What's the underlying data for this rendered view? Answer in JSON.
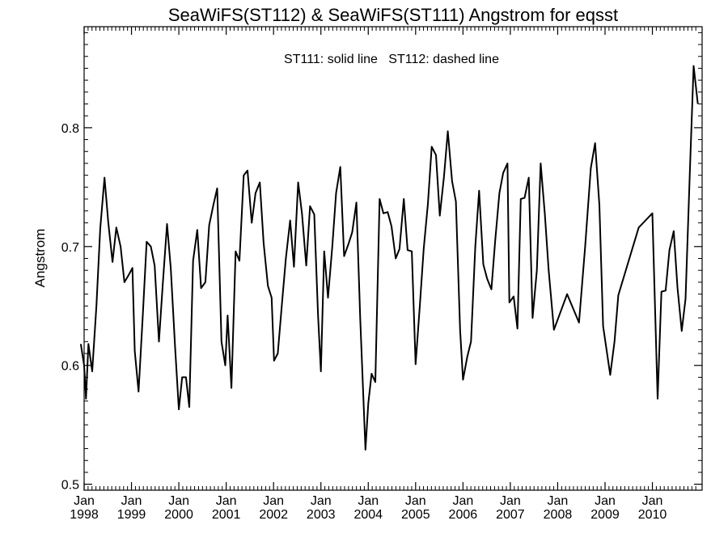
{
  "chart_data": {
    "type": "line",
    "title": "SeaWiFS(ST112) & SeaWiFS(ST111)  Angstrom for eqsst",
    "annotation": "ST111: solid line   ST112: dashed line",
    "xlabel": "",
    "ylabel": "Angstrom",
    "ylim": [
      0.495,
      0.885
    ],
    "xlim": [
      1998.0,
      2011.05
    ],
    "y_ticks": [
      0.5,
      0.6,
      0.7,
      0.8
    ],
    "y_tick_labels": [
      "0.5",
      "0.6",
      "0.7",
      "0.8"
    ],
    "x_ticks": [
      {
        "year": 1998,
        "month_label": "Jan",
        "year_label": "1998"
      },
      {
        "year": 1999,
        "month_label": "Jan",
        "year_label": "1999"
      },
      {
        "year": 2000,
        "month_label": "Jan",
        "year_label": "2000"
      },
      {
        "year": 2001,
        "month_label": "Jan",
        "year_label": "2001"
      },
      {
        "year": 2002,
        "month_label": "Jan",
        "year_label": "2002"
      },
      {
        "year": 2003,
        "month_label": "Jan",
        "year_label": "2003"
      },
      {
        "year": 2004,
        "month_label": "Jan",
        "year_label": "2004"
      },
      {
        "year": 2005,
        "month_label": "Jan",
        "year_label": "2005"
      },
      {
        "year": 2006,
        "month_label": "Jan",
        "year_label": "2006"
      },
      {
        "year": 2007,
        "month_label": "Jan",
        "year_label": "2007"
      },
      {
        "year": 2008,
        "month_label": "Jan",
        "year_label": "2008"
      },
      {
        "year": 2009,
        "month_label": "Jan",
        "year_label": "2009"
      },
      {
        "year": 2010,
        "month_label": "Jan",
        "year_label": "2010"
      }
    ],
    "series": [
      {
        "name": "ST111",
        "style": "solid",
        "color": "#000000",
        "points": [
          [
            1997.93,
            0.618
          ],
          [
            1998.0,
            0.6
          ],
          [
            1998.04,
            0.572
          ],
          [
            1998.09,
            0.618
          ],
          [
            1998.17,
            0.595
          ],
          [
            1998.26,
            0.65
          ],
          [
            1998.34,
            0.715
          ],
          [
            1998.43,
            0.758
          ],
          [
            1998.51,
            0.72
          ],
          [
            1998.6,
            0.687
          ],
          [
            1998.68,
            0.716
          ],
          [
            1998.77,
            0.7
          ],
          [
            1998.85,
            0.67
          ],
          [
            1998.94,
            0.676
          ],
          [
            1999.02,
            0.682
          ],
          [
            1999.07,
            0.612
          ],
          [
            1999.15,
            0.578
          ],
          [
            1999.24,
            0.643
          ],
          [
            1999.32,
            0.704
          ],
          [
            1999.41,
            0.7
          ],
          [
            1999.49,
            0.684
          ],
          [
            1999.58,
            0.62
          ],
          [
            1999.66,
            0.668
          ],
          [
            1999.75,
            0.719
          ],
          [
            1999.83,
            0.682
          ],
          [
            1999.92,
            0.616
          ],
          [
            2000.0,
            0.563
          ],
          [
            2000.07,
            0.59
          ],
          [
            2000.15,
            0.59
          ],
          [
            2000.22,
            0.565
          ],
          [
            2000.3,
            0.688
          ],
          [
            2000.39,
            0.714
          ],
          [
            2000.47,
            0.665
          ],
          [
            2000.56,
            0.67
          ],
          [
            2000.64,
            0.718
          ],
          [
            2000.73,
            0.735
          ],
          [
            2000.81,
            0.749
          ],
          [
            2000.9,
            0.62
          ],
          [
            2000.98,
            0.6
          ],
          [
            2001.03,
            0.642
          ],
          [
            2001.11,
            0.581
          ],
          [
            2001.2,
            0.696
          ],
          [
            2001.28,
            0.688
          ],
          [
            2001.37,
            0.76
          ],
          [
            2001.45,
            0.764
          ],
          [
            2001.54,
            0.72
          ],
          [
            2001.62,
            0.745
          ],
          [
            2001.71,
            0.754
          ],
          [
            2001.79,
            0.703
          ],
          [
            2001.88,
            0.667
          ],
          [
            2001.96,
            0.657
          ],
          [
            2002.01,
            0.604
          ],
          [
            2002.09,
            0.61
          ],
          [
            2002.18,
            0.653
          ],
          [
            2002.26,
            0.69
          ],
          [
            2002.35,
            0.722
          ],
          [
            2002.43,
            0.683
          ],
          [
            2002.52,
            0.754
          ],
          [
            2002.6,
            0.728
          ],
          [
            2002.69,
            0.684
          ],
          [
            2002.77,
            0.734
          ],
          [
            2002.86,
            0.727
          ],
          [
            2002.94,
            0.642
          ],
          [
            2003.0,
            0.595
          ],
          [
            2003.07,
            0.696
          ],
          [
            2003.15,
            0.657
          ],
          [
            2003.24,
            0.7
          ],
          [
            2003.32,
            0.745
          ],
          [
            2003.41,
            0.767
          ],
          [
            2003.49,
            0.692
          ],
          [
            2003.58,
            0.702
          ],
          [
            2003.66,
            0.712
          ],
          [
            2003.75,
            0.737
          ],
          [
            2003.83,
            0.64
          ],
          [
            2003.94,
            0.529
          ],
          [
            2004.0,
            0.568
          ],
          [
            2004.07,
            0.593
          ],
          [
            2004.15,
            0.586
          ],
          [
            2004.24,
            0.74
          ],
          [
            2004.32,
            0.728
          ],
          [
            2004.41,
            0.729
          ],
          [
            2004.49,
            0.717
          ],
          [
            2004.58,
            0.69
          ],
          [
            2004.66,
            0.698
          ],
          [
            2004.75,
            0.74
          ],
          [
            2004.83,
            0.697
          ],
          [
            2004.92,
            0.696
          ],
          [
            2005.0,
            0.601
          ],
          [
            2005.09,
            0.651
          ],
          [
            2005.17,
            0.698
          ],
          [
            2005.26,
            0.736
          ],
          [
            2005.34,
            0.784
          ],
          [
            2005.43,
            0.777
          ],
          [
            2005.51,
            0.726
          ],
          [
            2005.6,
            0.759
          ],
          [
            2005.68,
            0.797
          ],
          [
            2005.77,
            0.755
          ],
          [
            2005.85,
            0.738
          ],
          [
            2005.94,
            0.63
          ],
          [
            2006.0,
            0.588
          ],
          [
            2006.09,
            0.607
          ],
          [
            2006.17,
            0.62
          ],
          [
            2006.26,
            0.7
          ],
          [
            2006.34,
            0.747
          ],
          [
            2006.43,
            0.685
          ],
          [
            2006.51,
            0.673
          ],
          [
            2006.6,
            0.664
          ],
          [
            2006.68,
            0.705
          ],
          [
            2006.77,
            0.745
          ],
          [
            2006.85,
            0.762
          ],
          [
            2006.94,
            0.77
          ],
          [
            2006.98,
            0.653
          ],
          [
            2007.07,
            0.658
          ],
          [
            2007.15,
            0.631
          ],
          [
            2007.22,
            0.74
          ],
          [
            2007.3,
            0.741
          ],
          [
            2007.39,
            0.758
          ],
          [
            2007.47,
            0.64
          ],
          [
            2007.56,
            0.68
          ],
          [
            2007.64,
            0.77
          ],
          [
            2007.73,
            0.727
          ],
          [
            2007.81,
            0.68
          ],
          [
            2007.92,
            0.63
          ],
          [
            2008.2,
            0.66
          ],
          [
            2008.45,
            0.636
          ],
          [
            2008.58,
            0.7
          ],
          [
            2008.7,
            0.766
          ],
          [
            2008.79,
            0.787
          ],
          [
            2008.88,
            0.735
          ],
          [
            2008.96,
            0.633
          ],
          [
            2009.11,
            0.592
          ],
          [
            2009.2,
            0.62
          ],
          [
            2009.28,
            0.659
          ],
          [
            2009.71,
            0.716
          ],
          [
            2010.0,
            0.728
          ],
          [
            2010.11,
            0.572
          ],
          [
            2010.19,
            0.662
          ],
          [
            2010.28,
            0.663
          ],
          [
            2010.36,
            0.697
          ],
          [
            2010.45,
            0.713
          ],
          [
            2010.53,
            0.665
          ],
          [
            2010.62,
            0.629
          ],
          [
            2010.7,
            0.656
          ],
          [
            2010.79,
            0.762
          ],
          [
            2010.87,
            0.852
          ],
          [
            2010.96,
            0.82
          ]
        ]
      }
    ]
  }
}
